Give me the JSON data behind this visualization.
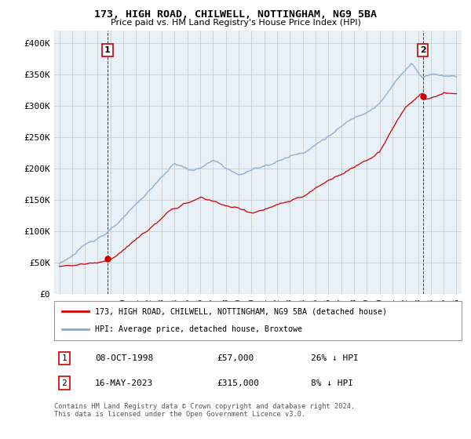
{
  "title": "173, HIGH ROAD, CHILWELL, NOTTINGHAM, NG9 5BA",
  "subtitle": "Price paid vs. HM Land Registry's House Price Index (HPI)",
  "legend_line1": "173, HIGH ROAD, CHILWELL, NOTTINGHAM, NG9 5BA (detached house)",
  "legend_line2": "HPI: Average price, detached house, Broxtowe",
  "point1_date": "08-OCT-1998",
  "point1_price": "£57,000",
  "point1_hpi": "26% ↓ HPI",
  "point2_date": "16-MAY-2023",
  "point2_price": "£315,000",
  "point2_hpi": "8% ↓ HPI",
  "footnote": "Contains HM Land Registry data © Crown copyright and database right 2024.\nThis data is licensed under the Open Government Licence v3.0.",
  "red_color": "#cc0000",
  "blue_color": "#88aacc",
  "grid_color": "#cccccc",
  "bg_color": "#ffffff",
  "plot_bg": "#e8f0f8",
  "ylim_min": 0,
  "ylim_max": 420000,
  "purchase1_year": 1998.77,
  "purchase1_price": 57000,
  "purchase2_year": 2023.37,
  "purchase2_price": 315000
}
